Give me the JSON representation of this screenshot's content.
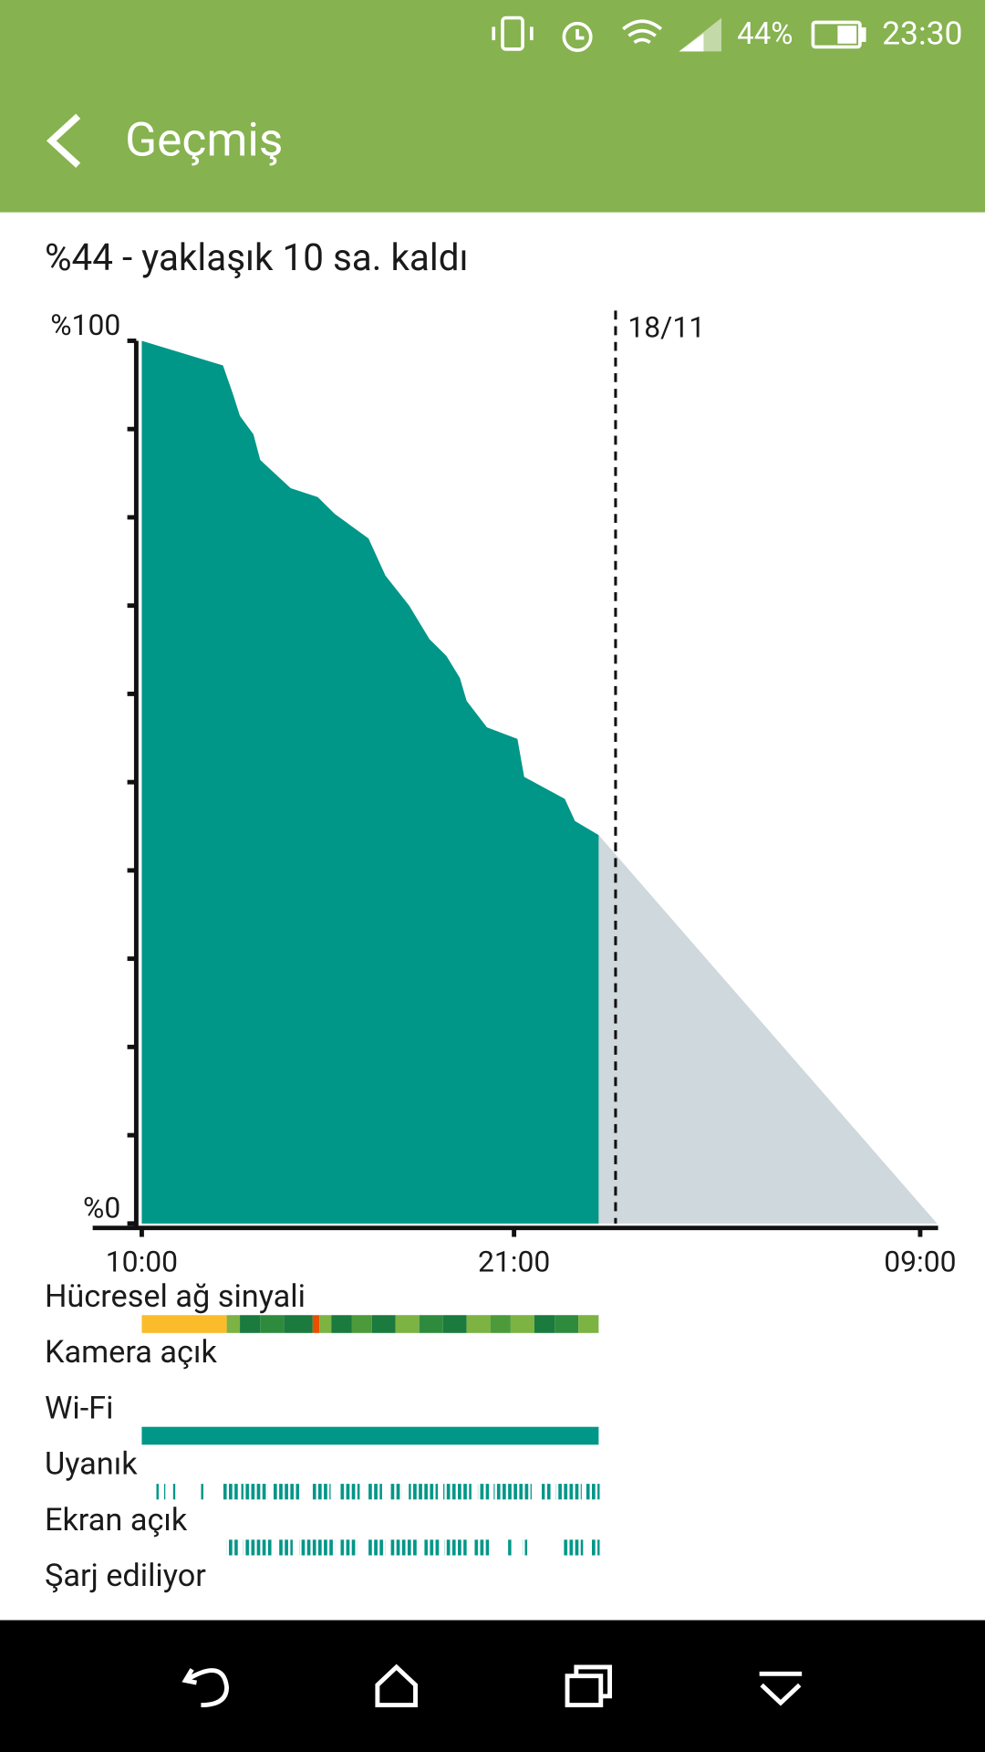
{
  "status_bar": {
    "battery": "44%",
    "time": "23:30"
  },
  "header": {
    "title": "Geçmiş"
  },
  "summary": "%44 - yaklaşık 10 sa. kaldı",
  "chart_data": {
    "type": "area",
    "x": [
      10.0,
      12.4,
      12.7,
      12.9,
      13.3,
      13.5,
      14.4,
      15.2,
      15.7,
      16.7,
      17.2,
      17.9,
      18.5,
      19.0,
      19.4,
      19.6,
      20.2,
      21.1,
      21.3,
      22.5,
      22.8,
      23.5
    ],
    "values": [
      100,
      97.2,
      93.9,
      91.5,
      89.4,
      86.5,
      83.3,
      82.3,
      80.4,
      77.6,
      73.4,
      70,
      66.2,
      64.3,
      61.8,
      59.2,
      56.2,
      54.9,
      50.6,
      48.1,
      45.6,
      44
    ],
    "color": "#009688",
    "forecast": {
      "x": [
        23.5,
        33.5
      ],
      "values": [
        44,
        0
      ],
      "color": "#cfd8dc"
    },
    "xlim": [
      8.55,
      33.53
    ],
    "ylim": [
      0,
      100
    ],
    "xticks": [
      {
        "value": 10,
        "label": "10:00"
      },
      {
        "value": 21,
        "label": "21:00"
      },
      {
        "value": 33,
        "label": "09:00"
      }
    ],
    "yticks": [
      {
        "value": 0,
        "label": "%0"
      },
      {
        "value": 100,
        "label": "%100"
      }
    ],
    "yminor": [
      10,
      20,
      30,
      40,
      50,
      60,
      70,
      80,
      90
    ],
    "date_marker": {
      "value": 24,
      "label": "18/11"
    },
    "tracks": [
      {
        "label": "Hücresel ağ sinyali",
        "style": "solid",
        "spans": [
          [
            10.0,
            12.51
          ],
          [
            12.51,
            12.9
          ],
          [
            12.9,
            13.5
          ],
          [
            13.5,
            14.2
          ],
          [
            14.2,
            15.05
          ],
          [
            15.05,
            15.25
          ],
          [
            15.25,
            15.6
          ],
          [
            15.6,
            16.2
          ],
          [
            16.2,
            16.8
          ],
          [
            16.8,
            17.5
          ],
          [
            17.5,
            18.2
          ],
          [
            18.2,
            18.9
          ],
          [
            18.9,
            19.6
          ],
          [
            19.6,
            20.3
          ],
          [
            20.3,
            20.9
          ],
          [
            20.9,
            21.6
          ],
          [
            21.6,
            22.2
          ],
          [
            22.2,
            22.9
          ],
          [
            22.9,
            23.5
          ]
        ],
        "colors": [
          "#fbbc2c",
          "#7cb342",
          "#1b7a3e",
          "#2e8b3e",
          "#1b7a3e",
          "#e65100",
          "#7cb342",
          "#1b7a3e",
          "#4c9a3a",
          "#1b7a3e",
          "#7cb342",
          "#2e8b3e",
          "#1b7a3e",
          "#7cb342",
          "#4c9a3a",
          "#7cb342",
          "#1b7a3e",
          "#2e8b3e",
          "#7cb342"
        ]
      },
      {
        "label": "Kamera açık",
        "style": "solid",
        "spans": [],
        "colors": []
      },
      {
        "label": "Wi-Fi",
        "style": "solid",
        "spans": [
          [
            10.0,
            23.5
          ]
        ],
        "colors": [
          "#009688"
        ]
      },
      {
        "label": "Uyanık",
        "style": "striped",
        "spans": [
          [
            10.43,
            10.5
          ],
          [
            10.66,
            10.73
          ],
          [
            10.92,
            10.99
          ],
          [
            11.75,
            11.82
          ],
          [
            12.41,
            12.84
          ],
          [
            12.94,
            13.73
          ],
          [
            13.89,
            14.65
          ],
          [
            15.05,
            15.58
          ],
          [
            15.87,
            16.44
          ],
          [
            16.7,
            17.1
          ],
          [
            17.36,
            17.69
          ],
          [
            17.89,
            18.75
          ],
          [
            18.91,
            19.74
          ],
          [
            19.93,
            20.26
          ],
          [
            20.4,
            21.52
          ],
          [
            21.82,
            21.91
          ],
          [
            21.98,
            22.08
          ],
          [
            22.24,
            23.0
          ],
          [
            23.13,
            23.53
          ]
        ],
        "colors": [
          "#009688"
        ]
      },
      {
        "label": "Ekran açık",
        "style": "striped",
        "spans": [
          [
            12.51,
            12.84
          ],
          [
            13.0,
            13.89
          ],
          [
            14.06,
            14.46
          ],
          [
            14.65,
            15.71
          ],
          [
            15.87,
            16.37
          ],
          [
            16.7,
            17.2
          ],
          [
            17.36,
            18.18
          ],
          [
            18.35,
            18.84
          ],
          [
            18.94,
            19.6
          ],
          [
            19.83,
            20.26
          ],
          [
            20.82,
            20.92
          ],
          [
            21.25,
            21.39
          ],
          [
            22.41,
            23.04
          ],
          [
            23.3,
            23.53
          ]
        ],
        "colors": [
          "#009688"
        ]
      },
      {
        "label": "Şarj ediliyor",
        "style": "solid",
        "spans": [],
        "colors": []
      }
    ]
  }
}
